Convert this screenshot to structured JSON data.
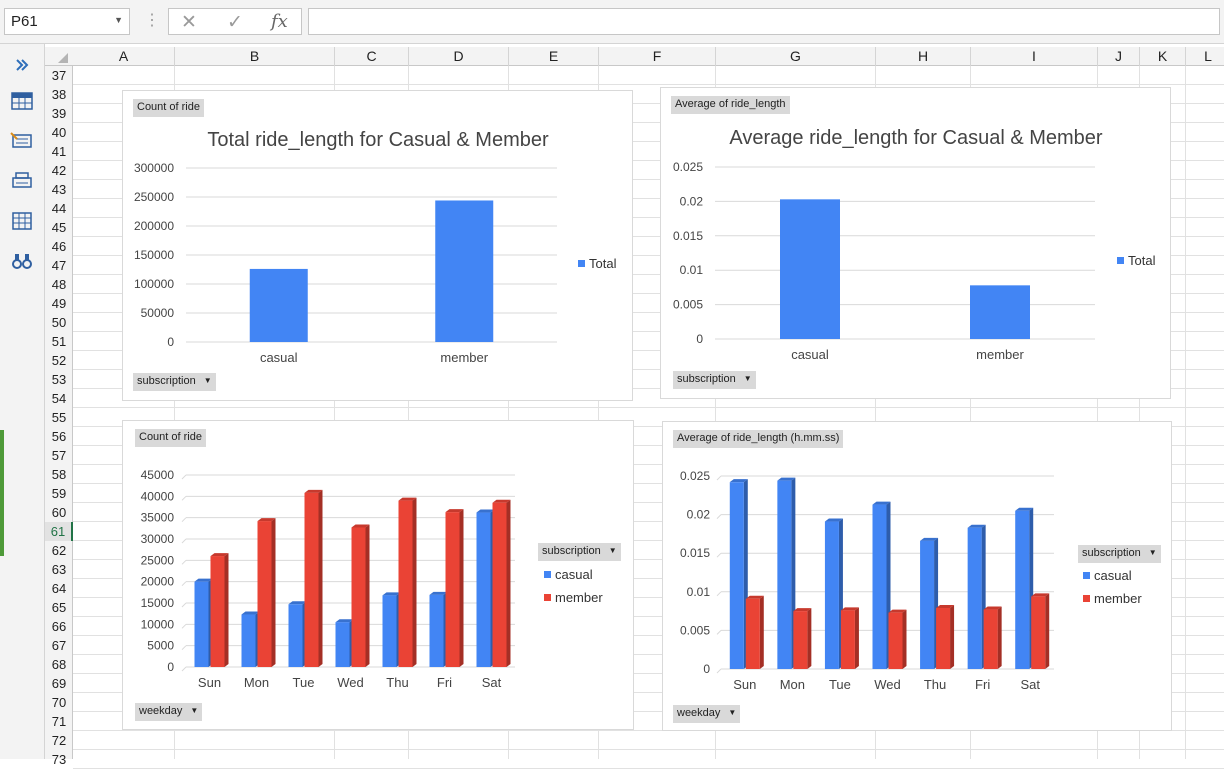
{
  "formula_bar": {
    "name_box": "P61",
    "cancel_glyph": "✕",
    "enter_glyph": "✓",
    "fx_glyph": "fx",
    "formula": ""
  },
  "grid": {
    "columns": [
      "A",
      "B",
      "C",
      "D",
      "E",
      "F",
      "G",
      "H",
      "I",
      "J",
      "K",
      "L"
    ],
    "rows": [
      "37",
      "38",
      "39",
      "40",
      "41",
      "42",
      "43",
      "44",
      "45",
      "46",
      "47",
      "48",
      "49",
      "50",
      "51",
      "52",
      "53",
      "54",
      "55",
      "56",
      "57",
      "58",
      "59",
      "60",
      "61",
      "62",
      "63",
      "64",
      "65",
      "66",
      "67",
      "68",
      "69",
      "70",
      "71",
      "72",
      "73"
    ],
    "selected_row": "61"
  },
  "left_toolbar": {
    "icons": [
      "expand-chevrons-icon",
      "table-icon",
      "form-icon",
      "print-icon",
      "grid-icon",
      "binoculars-icon"
    ]
  },
  "colors": {
    "casual": "#4285F4",
    "member": "#EA4335",
    "total": "#4285F4"
  },
  "charts": {
    "c1": {
      "pivot_field": "Count of ride",
      "filter_button": "subscription",
      "legend": [
        "Total"
      ],
      "chart_data": {
        "type": "bar",
        "title": "Total ride_length for Casual & Member",
        "categories": [
          "casual",
          "member"
        ],
        "series": [
          {
            "name": "Total",
            "values": [
              126000,
              244000
            ]
          }
        ],
        "ylim": [
          0,
          300000
        ],
        "yticks": [
          "0",
          "50000",
          "100000",
          "150000",
          "200000",
          "250000",
          "300000"
        ],
        "grid": true,
        "legend_position": "right"
      }
    },
    "c2": {
      "pivot_field": "Average of ride_length",
      "filter_button": "subscription",
      "legend": [
        "Total"
      ],
      "chart_data": {
        "type": "bar",
        "title": "Average ride_length for Casual & Member",
        "categories": [
          "casual",
          "member"
        ],
        "series": [
          {
            "name": "Total",
            "values": [
              0.0203,
              0.0078
            ]
          }
        ],
        "ylim": [
          0,
          0.025
        ],
        "yticks": [
          "0",
          "0.005",
          "0.01",
          "0.015",
          "0.02",
          "0.025"
        ],
        "grid": true,
        "legend_position": "right"
      }
    },
    "c3": {
      "pivot_field": "Count of ride",
      "filter_button": "weekday",
      "legend_button": "subscription",
      "legend": [
        "casual",
        "member"
      ],
      "chart_data": {
        "type": "bar",
        "title": "",
        "categories": [
          "Sun",
          "Mon",
          "Tue",
          "Wed",
          "Thu",
          "Fri",
          "Sat"
        ],
        "series": [
          {
            "name": "casual",
            "values": [
              20000,
              12300,
              14700,
              10500,
              16800,
              16900,
              36200
            ]
          },
          {
            "name": "member",
            "values": [
              26000,
              34200,
              40800,
              32700,
              39000,
              36300,
              38500
            ]
          }
        ],
        "ylim": [
          0,
          45000
        ],
        "yticks": [
          "0",
          "5000",
          "10000",
          "15000",
          "20000",
          "25000",
          "30000",
          "35000",
          "40000",
          "45000"
        ],
        "grid": true,
        "legend_position": "right"
      }
    },
    "c4": {
      "pivot_field": "Average of ride_length (h.mm.ss)",
      "filter_button": "weekday",
      "legend_button": "subscription",
      "legend": [
        "casual",
        "member"
      ],
      "chart_data": {
        "type": "bar",
        "title": "",
        "categories": [
          "Sun",
          "Mon",
          "Tue",
          "Wed",
          "Thu",
          "Fri",
          "Sat"
        ],
        "series": [
          {
            "name": "casual",
            "values": [
              0.0242,
              0.0244,
              0.0191,
              0.0213,
              0.0166,
              0.0183,
              0.0205
            ]
          },
          {
            "name": "member",
            "values": [
              0.0091,
              0.0075,
              0.0076,
              0.0073,
              0.0079,
              0.0077,
              0.0094
            ]
          }
        ],
        "ylim": [
          0,
          0.025
        ],
        "yticks": [
          "0",
          "0.005",
          "0.01",
          "0.015",
          "0.02",
          "0.025"
        ],
        "grid": true,
        "legend_position": "right"
      }
    }
  }
}
